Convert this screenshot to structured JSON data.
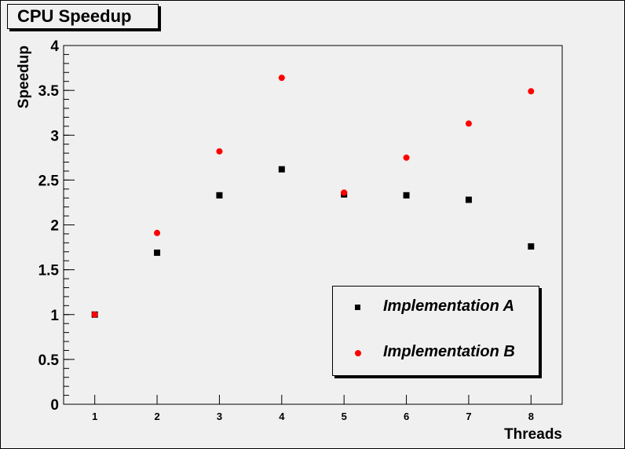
{
  "chart_data": {
    "type": "scatter",
    "title": "CPU Speedup",
    "xlabel": "Threads",
    "ylabel": "Speedup",
    "xlim": [
      0.5,
      8.5
    ],
    "ylim": [
      0,
      4
    ],
    "x_ticks": [
      1,
      2,
      3,
      4,
      5,
      6,
      7,
      8
    ],
    "y_ticks": [
      "0",
      "0.5",
      "1",
      "1.5",
      "2",
      "2.5",
      "3",
      "3.5",
      "4"
    ],
    "grid": false,
    "legend_position": "bottom-right",
    "series": [
      {
        "name": "Implementation A",
        "marker": "square",
        "color": "#000000",
        "x": [
          1,
          2,
          3,
          4,
          5,
          6,
          7,
          8
        ],
        "values": [
          1.0,
          1.69,
          2.33,
          2.62,
          2.34,
          2.33,
          2.28,
          1.76
        ]
      },
      {
        "name": "Implementation B",
        "marker": "circle",
        "color": "#ff0000",
        "x": [
          1,
          2,
          3,
          4,
          5,
          6,
          7,
          8
        ],
        "values": [
          1.0,
          1.91,
          2.82,
          3.64,
          2.36,
          2.75,
          3.13,
          3.49
        ]
      }
    ]
  }
}
